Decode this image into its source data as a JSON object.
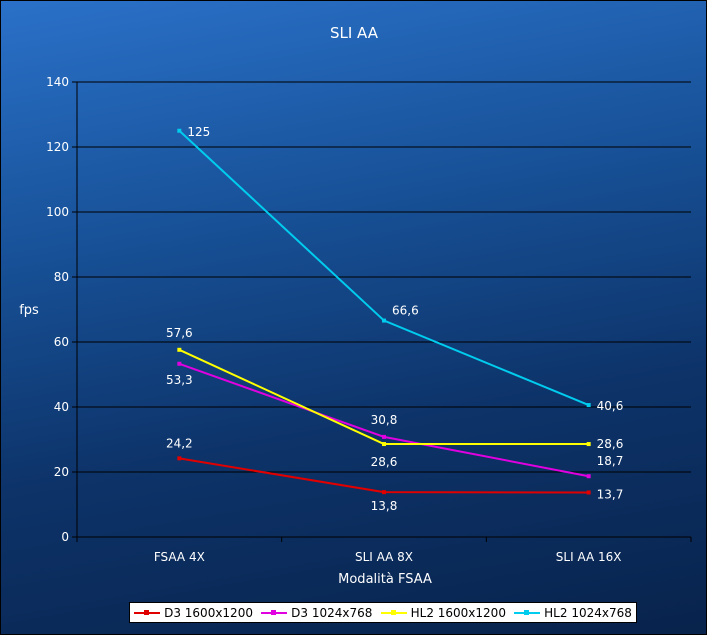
{
  "chart_data": {
    "type": "line",
    "title": "SLI AA",
    "xlabel": "Modalità FSAA",
    "ylabel": "fps",
    "categories": [
      "FSAA 4X",
      "SLI AA 8X",
      "SLI AA 16X"
    ],
    "ylim": [
      0,
      140
    ],
    "yticks": [
      0,
      20,
      40,
      60,
      80,
      100,
      120,
      140
    ],
    "grid": true,
    "legend_position": "bottom",
    "series": [
      {
        "name": "D3 1600x1200",
        "color": "#e00000",
        "values": [
          24.2,
          13.8,
          13.7
        ],
        "labels": [
          "24,2",
          "13,8",
          "13,7"
        ]
      },
      {
        "name": "D3 1024x768",
        "color": "#e000e0",
        "values": [
          53.3,
          30.8,
          18.7
        ],
        "labels": [
          "53,3",
          "30,8",
          "18,7"
        ]
      },
      {
        "name": "HL2 1600x1200",
        "color": "#ffff00",
        "values": [
          57.6,
          28.6,
          28.6
        ],
        "labels": [
          "57,6",
          "28,6",
          "28,6"
        ]
      },
      {
        "name": "HL2 1024x768",
        "color": "#00ccee",
        "values": [
          125,
          66.6,
          40.6
        ],
        "labels": [
          "125",
          "66,6",
          "40,6"
        ]
      }
    ]
  }
}
